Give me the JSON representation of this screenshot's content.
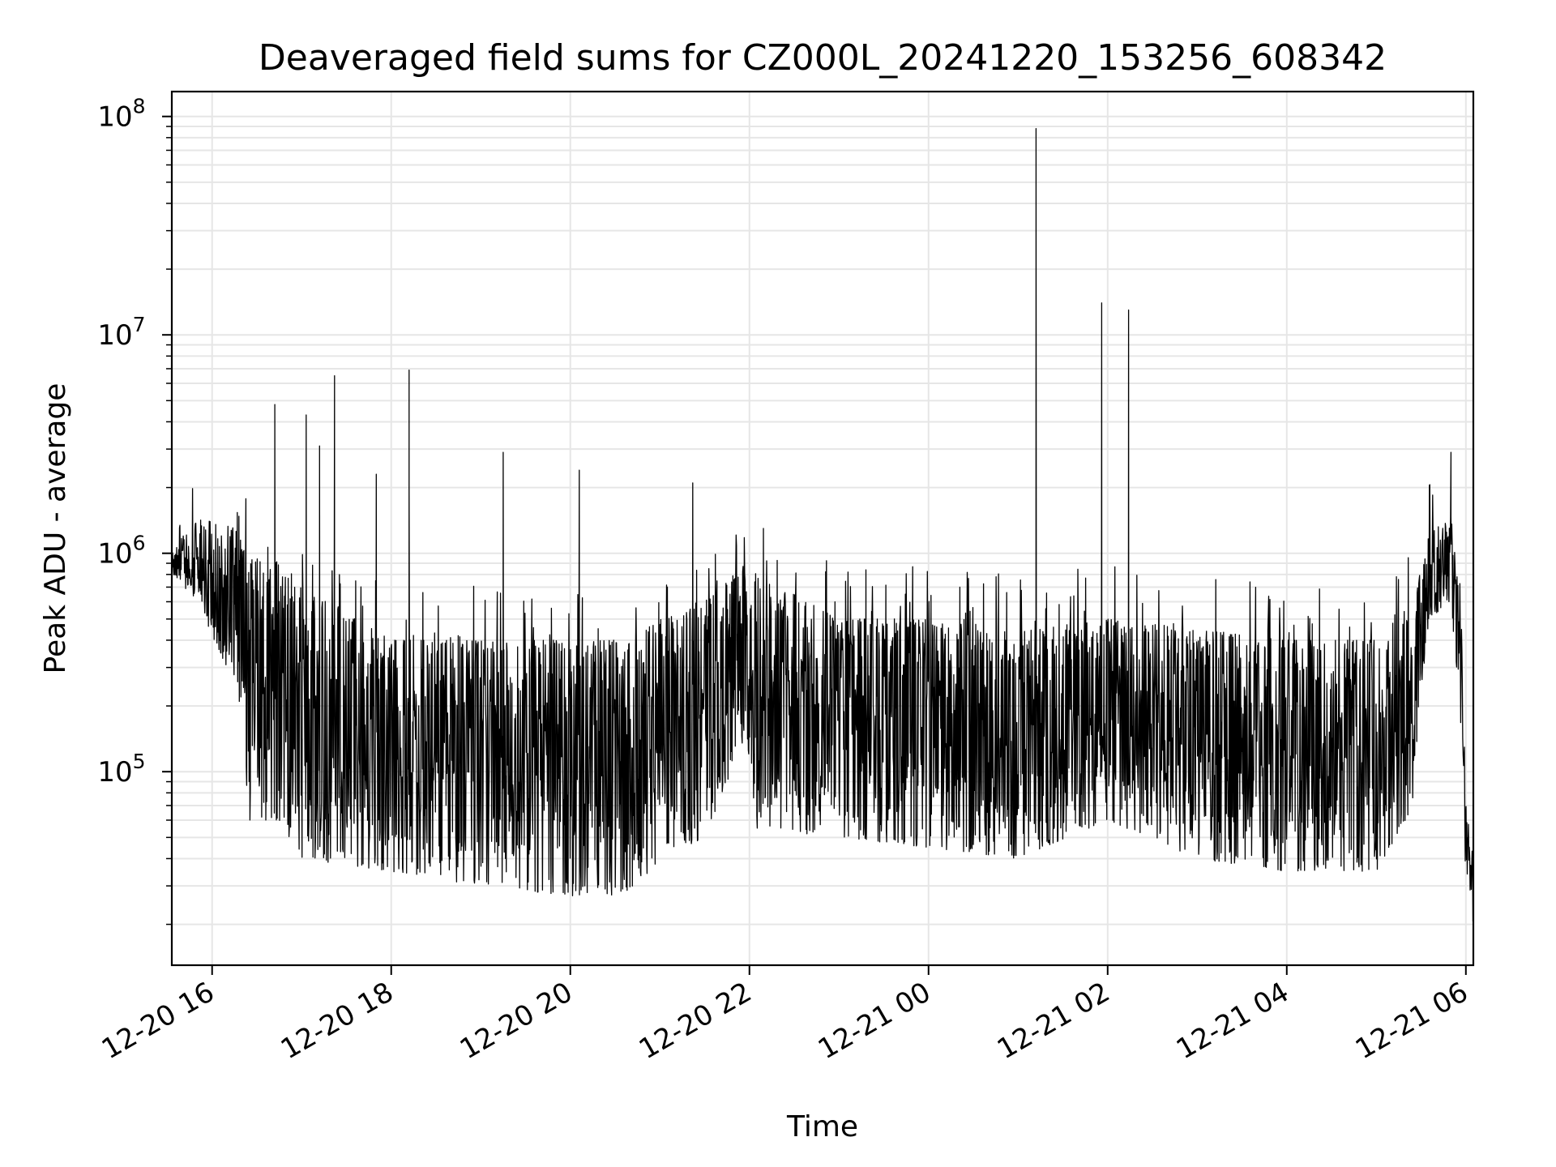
{
  "chart_data": {
    "type": "line",
    "title": "Deaveraged field sums for CZ000L_20241220_153256_608342",
    "xlabel": "Time",
    "ylabel": "Peak ADU - average",
    "x_scale": "time",
    "y_scale": "log",
    "xlim": [
      "2024-12-20 15:33",
      "2024-12-21 06:05"
    ],
    "ylim": [
      13000,
      130000000
    ],
    "grid": true,
    "legend": "none",
    "line_color": "#000000",
    "grid_color": "#e6e6e6",
    "x_ticks": [
      {
        "t": "2024-12-20 16:00",
        "label": "12-20 16"
      },
      {
        "t": "2024-12-20 18:00",
        "label": "12-20 18"
      },
      {
        "t": "2024-12-20 20:00",
        "label": "12-20 20"
      },
      {
        "t": "2024-12-20 22:00",
        "label": "12-20 22"
      },
      {
        "t": "2024-12-21 00:00",
        "label": "12-21 00"
      },
      {
        "t": "2024-12-21 02:00",
        "label": "12-21 02"
      },
      {
        "t": "2024-12-21 04:00",
        "label": "12-21 04"
      },
      {
        "t": "2024-12-21 06:00",
        "label": "12-21 06"
      }
    ],
    "y_ticks": [
      {
        "value": 100000,
        "base": "10",
        "exp": "5"
      },
      {
        "value": 1000000,
        "base": "10",
        "exp": "6"
      },
      {
        "value": 10000000,
        "base": "10",
        "exp": "7"
      },
      {
        "value": 100000000,
        "base": "10",
        "exp": "8"
      }
    ],
    "baseline_profile": [
      {
        "t": "2024-12-20 15:33",
        "low": 800000,
        "high": 1000000
      },
      {
        "t": "2024-12-20 15:50",
        "low": 600000,
        "high": 1500000
      },
      {
        "t": "2024-12-20 16:15",
        "low": 250000,
        "high": 1300000
      },
      {
        "t": "2024-12-20 16:25",
        "low": 60000,
        "high": 1000000
      },
      {
        "t": "2024-12-20 16:45",
        "low": 60000,
        "high": 900000
      },
      {
        "t": "2024-12-20 17:00",
        "low": 40000,
        "high": 700000
      },
      {
        "t": "2024-12-20 18:00",
        "low": 35000,
        "high": 400000
      },
      {
        "t": "2024-12-20 19:00",
        "low": 30000,
        "high": 400000
      },
      {
        "t": "2024-12-20 20:00",
        "low": 27000,
        "high": 400000
      },
      {
        "t": "2024-12-20 20:40",
        "low": 27000,
        "high": 400000
      },
      {
        "t": "2024-12-20 21:00",
        "low": 40000,
        "high": 500000
      },
      {
        "t": "2024-12-20 21:30",
        "low": 50000,
        "high": 600000
      },
      {
        "t": "2024-12-20 21:58",
        "low": 150000,
        "high": 900000
      },
      {
        "t": "2024-12-20 22:05",
        "low": 55000,
        "high": 800000
      },
      {
        "t": "2024-12-20 23:00",
        "low": 50000,
        "high": 500000
      },
      {
        "t": "2024-12-21 00:00",
        "low": 45000,
        "high": 500000
      },
      {
        "t": "2024-12-21 01:00",
        "low": 40000,
        "high": 450000
      },
      {
        "t": "2024-12-21 02:00",
        "low": 60000,
        "high": 500000
      },
      {
        "t": "2024-12-21 03:00",
        "low": 40000,
        "high": 450000
      },
      {
        "t": "2024-12-21 04:00",
        "low": 35000,
        "high": 400000
      },
      {
        "t": "2024-12-21 05:00",
        "low": 35000,
        "high": 400000
      },
      {
        "t": "2024-12-21 05:25",
        "low": 70000,
        "high": 600000
      },
      {
        "t": "2024-12-21 05:35",
        "low": 500000,
        "high": 1200000
      },
      {
        "t": "2024-12-21 05:50",
        "low": 600000,
        "high": 1500000
      },
      {
        "t": "2024-12-21 05:57",
        "low": 150000,
        "high": 500000
      },
      {
        "t": "2024-12-21 06:00",
        "low": 30000,
        "high": 70000
      },
      {
        "t": "2024-12-21 06:05",
        "low": 20000,
        "high": 40000
      }
    ],
    "spikes": [
      {
        "t": "2024-12-20 16:42",
        "value": 4800000
      },
      {
        "t": "2024-12-20 17:03",
        "value": 4300000
      },
      {
        "t": "2024-12-20 17:12",
        "value": 3100000
      },
      {
        "t": "2024-12-20 17:22",
        "value": 6500000
      },
      {
        "t": "2024-12-20 17:50",
        "value": 2300000
      },
      {
        "t": "2024-12-20 18:12",
        "value": 6900000
      },
      {
        "t": "2024-12-20 18:12",
        "value": 2000000
      },
      {
        "t": "2024-12-20 19:15",
        "value": 2900000
      },
      {
        "t": "2024-12-20 20:06",
        "value": 2400000
      },
      {
        "t": "2024-12-20 21:22",
        "value": 2100000
      },
      {
        "t": "2024-12-21 01:12",
        "value": 88000000
      },
      {
        "t": "2024-12-21 01:56",
        "value": 14000000
      },
      {
        "t": "2024-12-21 02:14",
        "value": 13000000
      },
      {
        "t": "2024-12-21 05:50",
        "value": 2900000
      }
    ]
  }
}
